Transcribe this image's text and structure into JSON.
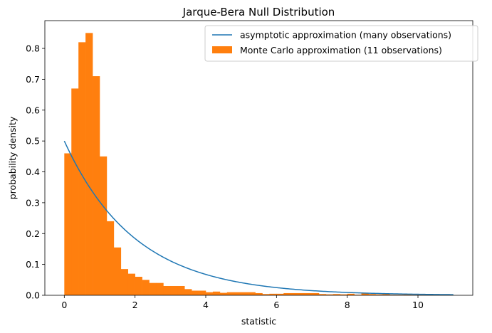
{
  "chart_data": {
    "type": "bar",
    "title": "Jarque-Bera Null Distribution",
    "xlabel": "statistic",
    "ylabel": "probability density",
    "xlim": [
      -0.55,
      11.55
    ],
    "ylim": [
      0,
      0.89
    ],
    "xticks": [
      0,
      2,
      4,
      6,
      8,
      10
    ],
    "yticks": [
      0.0,
      0.1,
      0.2,
      0.3,
      0.4,
      0.5,
      0.6,
      0.7,
      0.8
    ],
    "grid": false,
    "legend_position": "top-right",
    "series": [
      {
        "name": "asymptotic approximation (many observations)",
        "type": "line",
        "color": "#1f77b4",
        "function": "0.5*exp(-x/2)",
        "x_range": [
          0,
          11
        ]
      },
      {
        "name": "Monte Carlo approximation (11 observations)",
        "type": "histogram",
        "color": "#ff7f0e",
        "bin_start": 0,
        "bin_width": 0.2,
        "values": [
          0.46,
          0.67,
          0.82,
          0.85,
          0.71,
          0.45,
          0.24,
          0.155,
          0.085,
          0.07,
          0.06,
          0.05,
          0.04,
          0.04,
          0.03,
          0.03,
          0.03,
          0.02,
          0.015,
          0.015,
          0.01,
          0.012,
          0.008,
          0.01,
          0.01,
          0.01,
          0.01,
          0.007,
          0.004,
          0.005,
          0.005,
          0.007,
          0.007,
          0.007,
          0.007,
          0.007,
          0.004,
          0.003,
          0.004,
          0.003,
          0.005,
          0.002,
          0.006,
          0.004,
          0.003,
          0.004,
          0.002,
          0.002,
          0.004,
          0.002,
          0.002,
          0.002,
          0.002,
          0.002,
          0.001
        ]
      }
    ]
  }
}
